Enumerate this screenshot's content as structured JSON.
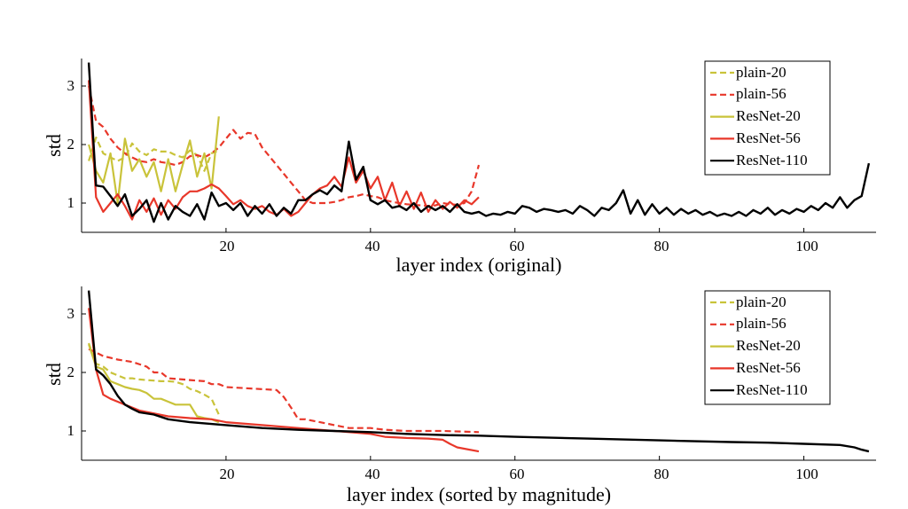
{
  "chart_data": [
    {
      "type": "line",
      "xlabel": "layer index (original)",
      "ylabel": "std",
      "xlim": [
        0,
        110
      ],
      "ylim": [
        0.5,
        3.5
      ],
      "xticks": [
        "20",
        "40",
        "60",
        "80",
        "100"
      ],
      "yticks": [
        "1",
        "2",
        "3"
      ],
      "legend_position": "top-right",
      "series": [
        {
          "name": "plain-20",
          "color": "#c9c33a",
          "style": "dashed",
          "x": [
            1,
            2,
            3,
            4,
            5,
            6,
            7,
            8,
            9,
            10,
            11,
            12,
            13,
            14,
            15,
            16,
            17,
            18,
            19
          ],
          "y": [
            1.72,
            2.12,
            1.85,
            1.78,
            1.72,
            1.78,
            2.02,
            1.88,
            1.82,
            1.92,
            1.88,
            1.88,
            1.82,
            1.78,
            1.9,
            1.82,
            1.55,
            1.85,
            1.9
          ]
        },
        {
          "name": "plain-56",
          "color": "#e8372a",
          "style": "dashed",
          "x": [
            1,
            2,
            3,
            4,
            5,
            6,
            7,
            8,
            9,
            10,
            11,
            12,
            13,
            14,
            15,
            16,
            17,
            18,
            19,
            20,
            21,
            22,
            23,
            24,
            25,
            26,
            27,
            28,
            29,
            30,
            31,
            32,
            33,
            34,
            35,
            36,
            37,
            38,
            39,
            40,
            41,
            42,
            43,
            44,
            45,
            46,
            47,
            48,
            49,
            50,
            51,
            52,
            53,
            54,
            55
          ],
          "y": [
            3.0,
            2.4,
            2.3,
            2.1,
            1.95,
            1.85,
            1.78,
            1.72,
            1.7,
            1.75,
            1.7,
            1.68,
            1.65,
            1.7,
            1.8,
            1.82,
            1.78,
            1.85,
            1.95,
            2.1,
            2.25,
            2.1,
            2.2,
            2.18,
            1.95,
            1.8,
            1.65,
            1.5,
            1.35,
            1.2,
            1.05,
            1.0,
            1.0,
            1.0,
            1.02,
            1.05,
            1.1,
            1.12,
            1.15,
            1.12,
            1.1,
            1.05,
            1.02,
            1.0,
            0.98,
            0.97,
            0.96,
            0.95,
            0.96,
            1.0,
            0.98,
            0.97,
            1.0,
            1.2,
            1.65
          ]
        },
        {
          "name": "ResNet-20",
          "color": "#c9c33a",
          "style": "solid",
          "x": [
            1,
            2,
            3,
            4,
            5,
            6,
            7,
            8,
            9,
            10,
            11,
            12,
            13,
            14,
            15,
            16,
            17,
            18,
            19
          ],
          "y": [
            2.0,
            1.55,
            1.35,
            1.85,
            1.0,
            2.1,
            1.55,
            1.75,
            1.45,
            1.7,
            1.2,
            1.75,
            1.2,
            1.65,
            2.07,
            1.45,
            1.85,
            1.25,
            2.48
          ]
        },
        {
          "name": "ResNet-56",
          "color": "#e8372a",
          "style": "solid",
          "x": [
            1,
            2,
            3,
            4,
            5,
            6,
            7,
            8,
            9,
            10,
            11,
            12,
            13,
            14,
            15,
            16,
            17,
            18,
            19,
            20,
            21,
            22,
            23,
            24,
            25,
            26,
            27,
            28,
            29,
            30,
            31,
            32,
            33,
            34,
            35,
            36,
            37,
            38,
            39,
            40,
            41,
            42,
            43,
            44,
            45,
            46,
            47,
            48,
            49,
            50,
            51,
            52,
            53,
            54,
            55
          ],
          "y": [
            3.1,
            1.1,
            0.85,
            1.0,
            1.15,
            0.95,
            0.72,
            1.05,
            0.85,
            1.08,
            0.8,
            1.05,
            0.9,
            1.1,
            1.2,
            1.2,
            1.25,
            1.32,
            1.25,
            1.12,
            0.98,
            1.05,
            0.95,
            0.9,
            0.95,
            0.85,
            0.8,
            0.9,
            0.78,
            0.85,
            1.0,
            1.15,
            1.25,
            1.3,
            1.45,
            1.28,
            1.78,
            1.35,
            1.55,
            1.25,
            1.45,
            1.05,
            1.35,
            0.95,
            1.2,
            0.9,
            1.18,
            0.85,
            1.05,
            0.9,
            1.02,
            0.92,
            1.05,
            0.98,
            1.1
          ]
        },
        {
          "name": "ResNet-110",
          "color": "#000000",
          "style": "solid",
          "x": [
            1,
            2,
            3,
            4,
            5,
            6,
            7,
            8,
            9,
            10,
            11,
            12,
            13,
            14,
            15,
            16,
            17,
            18,
            19,
            20,
            21,
            22,
            23,
            24,
            25,
            26,
            27,
            28,
            29,
            30,
            31,
            32,
            33,
            34,
            35,
            36,
            37,
            38,
            39,
            40,
            41,
            42,
            43,
            44,
            45,
            46,
            47,
            48,
            49,
            50,
            51,
            52,
            53,
            54,
            55,
            56,
            57,
            58,
            59,
            60,
            61,
            62,
            63,
            64,
            65,
            66,
            67,
            68,
            69,
            70,
            71,
            72,
            73,
            74,
            75,
            76,
            77,
            78,
            79,
            80,
            81,
            82,
            83,
            84,
            85,
            86,
            87,
            88,
            89,
            90,
            91,
            92,
            93,
            94,
            95,
            96,
            97,
            98,
            99,
            100,
            101,
            102,
            103,
            104,
            105,
            106,
            107,
            108,
            109
          ],
          "y": [
            3.4,
            1.3,
            1.28,
            1.12,
            0.95,
            1.15,
            0.78,
            0.9,
            1.05,
            0.68,
            1.0,
            0.72,
            0.95,
            0.85,
            0.78,
            0.98,
            0.72,
            1.18,
            0.95,
            1.0,
            0.88,
            1.0,
            0.78,
            0.95,
            0.82,
            0.98,
            0.78,
            0.92,
            0.82,
            1.05,
            1.05,
            1.15,
            1.22,
            1.15,
            1.3,
            1.2,
            2.05,
            1.4,
            1.62,
            1.05,
            0.98,
            1.05,
            0.92,
            0.95,
            0.88,
            1.0,
            0.85,
            0.95,
            0.88,
            0.95,
            0.85,
            0.98,
            0.85,
            0.82,
            0.85,
            0.78,
            0.82,
            0.8,
            0.85,
            0.82,
            0.95,
            0.92,
            0.85,
            0.9,
            0.88,
            0.85,
            0.88,
            0.82,
            0.95,
            0.88,
            0.78,
            0.92,
            0.88,
            1.0,
            1.22,
            0.82,
            1.05,
            0.8,
            0.98,
            0.82,
            0.92,
            0.8,
            0.9,
            0.82,
            0.88,
            0.8,
            0.85,
            0.78,
            0.82,
            0.78,
            0.85,
            0.78,
            0.88,
            0.82,
            0.92,
            0.8,
            0.88,
            0.82,
            0.9,
            0.85,
            0.95,
            0.88,
            1.0,
            0.92,
            1.1,
            0.92,
            1.05,
            1.12,
            1.68
          ]
        }
      ]
    },
    {
      "type": "line",
      "xlabel": "layer index (sorted by magnitude)",
      "ylabel": "std",
      "xlim": [
        0,
        110
      ],
      "ylim": [
        0.5,
        3.5
      ],
      "xticks": [
        "20",
        "40",
        "60",
        "80",
        "100"
      ],
      "yticks": [
        "1",
        "2",
        "3"
      ],
      "legend_position": "top-right",
      "series": [
        {
          "name": "plain-20",
          "color": "#c9c33a",
          "style": "dashed",
          "x": [
            1,
            2,
            3,
            4,
            5,
            6,
            7,
            8,
            9,
            10,
            11,
            12,
            13,
            14,
            15,
            16,
            17,
            18,
            19
          ],
          "y": [
            2.5,
            2.15,
            2.1,
            2.0,
            1.95,
            1.9,
            1.9,
            1.88,
            1.87,
            1.86,
            1.85,
            1.85,
            1.84,
            1.8,
            1.72,
            1.68,
            1.62,
            1.55,
            1.28
          ]
        },
        {
          "name": "plain-56",
          "color": "#e8372a",
          "style": "dashed",
          "x": [
            1,
            3,
            5,
            7,
            9,
            10,
            11,
            12,
            14,
            15,
            17,
            18,
            19,
            20,
            27,
            28,
            29,
            30,
            31,
            33,
            35,
            37,
            40,
            42,
            45,
            50,
            55
          ],
          "y": [
            2.4,
            2.28,
            2.22,
            2.18,
            2.1,
            2.0,
            2.0,
            1.9,
            1.88,
            1.87,
            1.85,
            1.8,
            1.8,
            1.75,
            1.7,
            1.58,
            1.4,
            1.2,
            1.2,
            1.15,
            1.1,
            1.05,
            1.05,
            1.02,
            1.0,
            1.0,
            0.98
          ]
        },
        {
          "name": "ResNet-20",
          "color": "#c9c33a",
          "style": "solid",
          "x": [
            1,
            2,
            3,
            4,
            5,
            6,
            7,
            8,
            9,
            10,
            11,
            12,
            13,
            14,
            15,
            16,
            17,
            18,
            19
          ],
          "y": [
            2.48,
            2.1,
            2.05,
            1.85,
            1.8,
            1.75,
            1.72,
            1.7,
            1.65,
            1.55,
            1.55,
            1.5,
            1.45,
            1.45,
            1.45,
            1.25,
            1.22,
            1.2,
            1.15
          ]
        },
        {
          "name": "ResNet-56",
          "color": "#e8372a",
          "style": "solid",
          "x": [
            1,
            2,
            3,
            4,
            5,
            6,
            8,
            10,
            12,
            15,
            18,
            20,
            25,
            30,
            35,
            40,
            42,
            45,
            48,
            50,
            51,
            52,
            55
          ],
          "y": [
            3.1,
            2.05,
            1.62,
            1.55,
            1.5,
            1.45,
            1.35,
            1.3,
            1.25,
            1.22,
            1.2,
            1.15,
            1.1,
            1.05,
            1.0,
            0.95,
            0.9,
            0.88,
            0.87,
            0.85,
            0.78,
            0.72,
            0.65
          ]
        },
        {
          "name": "ResNet-110",
          "color": "#000000",
          "style": "solid",
          "x": [
            1,
            2,
            3,
            4,
            5,
            6,
            7,
            8,
            10,
            12,
            15,
            20,
            25,
            30,
            35,
            40,
            45,
            50,
            55,
            60,
            70,
            80,
            90,
            95,
            100,
            105,
            107,
            108,
            109
          ],
          "y": [
            3.4,
            2.05,
            1.95,
            1.8,
            1.6,
            1.45,
            1.38,
            1.32,
            1.28,
            1.2,
            1.15,
            1.1,
            1.05,
            1.02,
            1.0,
            0.98,
            0.95,
            0.93,
            0.92,
            0.9,
            0.87,
            0.84,
            0.81,
            0.8,
            0.78,
            0.76,
            0.72,
            0.68,
            0.65
          ]
        }
      ]
    }
  ]
}
